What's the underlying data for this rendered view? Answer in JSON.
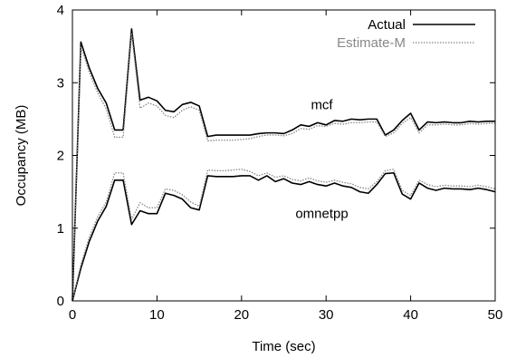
{
  "chart_data": {
    "type": "line",
    "xlabel": "Time (sec)",
    "ylabel": "Occupancy (MB)",
    "xlim": [
      0,
      50
    ],
    "ylim": [
      0,
      4
    ],
    "xticks": [
      0,
      10,
      20,
      30,
      40,
      50
    ],
    "yticks": [
      0,
      1,
      2,
      3,
      4
    ],
    "grid": false,
    "legend_position": "top-right",
    "legend": [
      {
        "label": "Actual",
        "style": "solid",
        "color": "#000000"
      },
      {
        "label": "Estimate-M",
        "style": "dotted",
        "color": "#888888"
      }
    ],
    "annotations": [
      {
        "text": "mcf",
        "x": 29.5,
        "y": 2.7
      },
      {
        "text": "omnetpp",
        "x": 29.5,
        "y": 1.2
      }
    ],
    "x": [
      0,
      1,
      2,
      3,
      4,
      5,
      6,
      7,
      8,
      9,
      10,
      11,
      12,
      13,
      14,
      15,
      16,
      17,
      18,
      19,
      20,
      21,
      22,
      23,
      24,
      25,
      26,
      27,
      28,
      29,
      30,
      31,
      32,
      33,
      34,
      35,
      36,
      37,
      38,
      39,
      40,
      41,
      42,
      43,
      44,
      45,
      46,
      47,
      48,
      49,
      50
    ],
    "series": [
      {
        "name": "Actual",
        "group": "mcf",
        "style": "solid",
        "values": [
          0.0,
          3.56,
          3.2,
          2.92,
          2.72,
          2.35,
          2.35,
          3.74,
          2.76,
          2.8,
          2.75,
          2.62,
          2.6,
          2.7,
          2.73,
          2.68,
          2.26,
          2.28,
          2.28,
          2.28,
          2.28,
          2.28,
          2.3,
          2.31,
          2.31,
          2.3,
          2.35,
          2.42,
          2.4,
          2.45,
          2.42,
          2.48,
          2.47,
          2.5,
          2.49,
          2.5,
          2.5,
          2.28,
          2.35,
          2.48,
          2.58,
          2.35,
          2.46,
          2.45,
          2.46,
          2.45,
          2.45,
          2.47,
          2.46,
          2.47,
          2.47
        ]
      },
      {
        "name": "Estimate-M",
        "group": "mcf",
        "style": "dotted",
        "values": [
          0.0,
          3.5,
          3.14,
          2.86,
          2.64,
          2.25,
          2.25,
          3.68,
          2.65,
          2.72,
          2.68,
          2.55,
          2.52,
          2.62,
          2.67,
          2.62,
          2.2,
          2.21,
          2.21,
          2.21,
          2.22,
          2.23,
          2.26,
          2.28,
          2.28,
          2.27,
          2.3,
          2.37,
          2.36,
          2.41,
          2.4,
          2.44,
          2.43,
          2.45,
          2.45,
          2.46,
          2.46,
          2.26,
          2.31,
          2.44,
          2.52,
          2.31,
          2.42,
          2.42,
          2.43,
          2.42,
          2.42,
          2.44,
          2.43,
          2.44,
          2.44
        ]
      },
      {
        "name": "Actual",
        "group": "omnetpp",
        "style": "solid",
        "values": [
          0.0,
          0.45,
          0.82,
          1.1,
          1.3,
          1.66,
          1.66,
          1.05,
          1.24,
          1.2,
          1.2,
          1.48,
          1.45,
          1.4,
          1.28,
          1.25,
          1.72,
          1.71,
          1.71,
          1.71,
          1.72,
          1.72,
          1.66,
          1.72,
          1.64,
          1.68,
          1.62,
          1.6,
          1.64,
          1.6,
          1.58,
          1.62,
          1.58,
          1.56,
          1.5,
          1.48,
          1.6,
          1.75,
          1.76,
          1.47,
          1.4,
          1.62,
          1.55,
          1.52,
          1.55,
          1.54,
          1.54,
          1.53,
          1.55,
          1.53,
          1.5
        ]
      },
      {
        "name": "Estimate-M",
        "group": "omnetpp",
        "style": "dotted",
        "values": [
          0.0,
          0.5,
          0.88,
          1.16,
          1.36,
          1.76,
          1.76,
          1.12,
          1.35,
          1.28,
          1.28,
          1.54,
          1.52,
          1.46,
          1.36,
          1.3,
          1.8,
          1.79,
          1.79,
          1.8,
          1.81,
          1.78,
          1.72,
          1.76,
          1.7,
          1.72,
          1.67,
          1.65,
          1.69,
          1.65,
          1.63,
          1.66,
          1.63,
          1.61,
          1.56,
          1.54,
          1.64,
          1.79,
          1.81,
          1.52,
          1.45,
          1.66,
          1.6,
          1.57,
          1.59,
          1.58,
          1.58,
          1.57,
          1.59,
          1.57,
          1.54
        ]
      }
    ]
  }
}
